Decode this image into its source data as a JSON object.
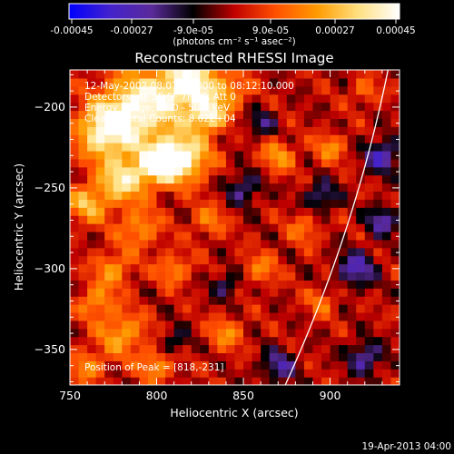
{
  "colorbar": {
    "ticks": [
      "-0.00045",
      "-0.00027",
      "-9.0e-05",
      "9.0e-05",
      "0.00027",
      "0.00045"
    ],
    "unit_label": "(photons cm⁻² s⁻¹ asec⁻²)",
    "range": [
      -0.00045,
      0.00045
    ],
    "colormap": [
      "#0000ff",
      "#4422cc",
      "#5a2a9a",
      "#000000",
      "#c00000",
      "#ff5000",
      "#ff9a00",
      "#ffe080",
      "#ffffff"
    ]
  },
  "chart_data": {
    "type": "heatmap",
    "title": "Reconstructed RHESSI Image",
    "xlabel": "Heliocentric X (arcsec)",
    "ylabel": "Heliocentric Y (arcsec)",
    "xlim": [
      750,
      940
    ],
    "ylim": [
      -372,
      -177
    ],
    "xticks": [
      750,
      800,
      850,
      900
    ],
    "xtick_labels": [
      "750",
      "800",
      "850",
      "900"
    ],
    "yticks": [
      -200,
      -250,
      -300,
      -350
    ],
    "ytick_labels": [
      "−200",
      "−250",
      "−300",
      "−350"
    ],
    "info_lines": [
      "12-May-2002 08:07:18.000 to 08:12:10.000",
      "Detectors: 4F 5F 6F 7F 8F, Att 0",
      "Energy Range: 25.0 - 50.0 keV",
      "Clean    Total Counts: 8.62E+04"
    ],
    "peak_label": "Position of Peak = [818,-231]",
    "peak_position": [
      818,
      -231
    ],
    "limb_color": "#ffffff"
  },
  "footer": {
    "date": "19-Apr-2013 04:00"
  }
}
